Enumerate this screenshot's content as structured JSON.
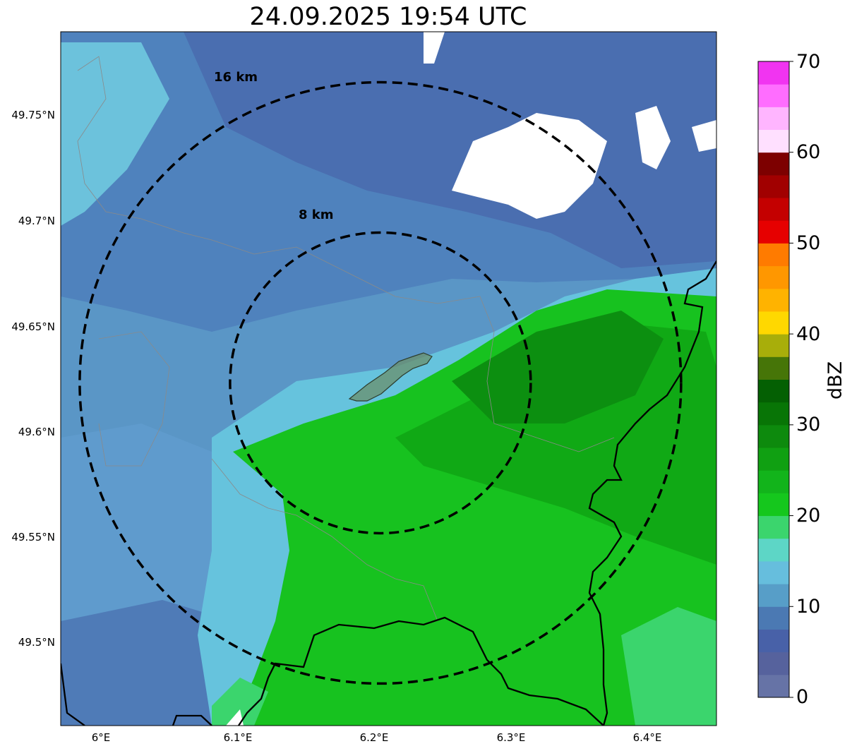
{
  "title": "24.09.2025 19:54 UTC",
  "map": {
    "extent": {
      "lon_min": 5.97,
      "lon_max": 6.45,
      "lat_min": 49.459,
      "lat_max": 49.789
    },
    "center": {
      "lon": 6.204,
      "lat": 49.622
    },
    "range_rings": [
      {
        "label": "8 km",
        "radius_deg_lat": 0.0715
      },
      {
        "label": "16 km",
        "radius_deg_lat": 0.143
      }
    ],
    "lat_ticks": [
      {
        "value": 49.75,
        "label": "49.75°N"
      },
      {
        "value": 49.7,
        "label": "49.7°N"
      },
      {
        "value": 49.65,
        "label": "49.65°N"
      },
      {
        "value": 49.6,
        "label": "49.6°N"
      },
      {
        "value": 49.55,
        "label": "49.55°N"
      },
      {
        "value": 49.5,
        "label": "49.5°N"
      }
    ],
    "lon_ticks": [
      {
        "value": 6.0,
        "label": "6°E"
      },
      {
        "value": 6.1,
        "label": "6.1°E"
      },
      {
        "value": 6.2,
        "label": "6.2°E"
      },
      {
        "value": 6.3,
        "label": "6.3°E"
      },
      {
        "value": 6.4,
        "label": "6.4°E"
      }
    ]
  },
  "colorbar": {
    "title": "dBZ",
    "min": 0,
    "max": 70,
    "tick_labels": [
      "0",
      "10",
      "20",
      "30",
      "40",
      "50",
      "60",
      "70"
    ],
    "colors": [
      "#6673a6",
      "#56629d",
      "#4861a8",
      "#4b79b3",
      "#579ec8",
      "#66bedd",
      "#5dd6c6",
      "#3bd56d",
      "#15c71d",
      "#12b41b",
      "#10a012",
      "#0d8a0d",
      "#087506",
      "#046003",
      "#467508",
      "#a8ae0a",
      "#ffd800",
      "#ffb300",
      "#ff9700",
      "#ff7b00",
      "#e60000",
      "#c40000",
      "#a10000",
      "#7d0000",
      "#ffe0ff",
      "#ffb5ff",
      "#ff6dff",
      "#f134f1"
    ]
  }
}
